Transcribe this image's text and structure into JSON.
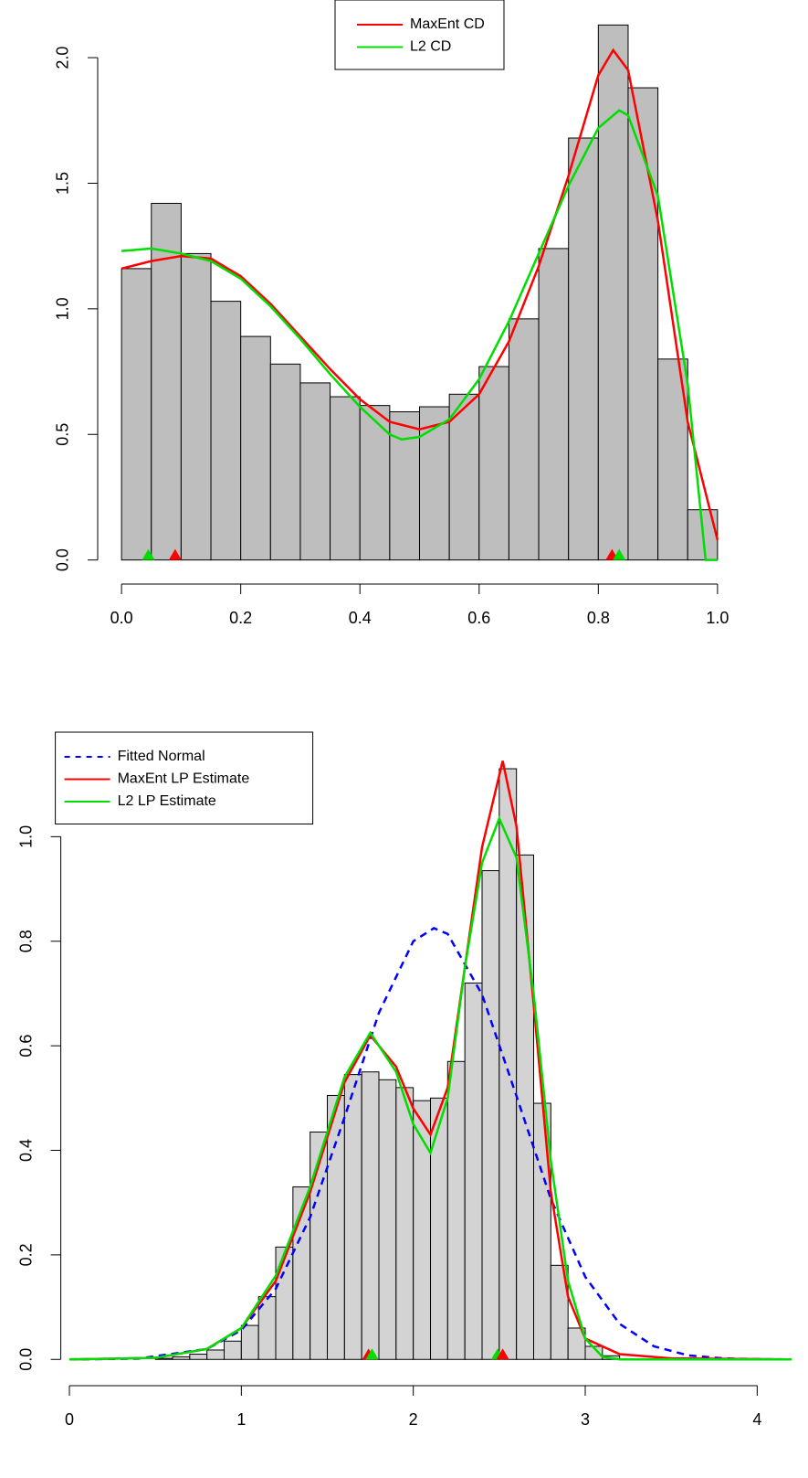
{
  "chart_data": [
    {
      "type": "histogram",
      "bins": [
        0,
        0.05,
        0.1,
        0.15,
        0.2,
        0.25,
        0.3,
        0.35,
        0.4,
        0.45,
        0.5,
        0.55,
        0.6,
        0.65,
        0.7,
        0.75,
        0.8,
        0.85,
        0.9,
        0.95,
        1
      ],
      "values": [
        1.16,
        1.42,
        1.22,
        1.03,
        0.89,
        0.78,
        0.705,
        0.65,
        0.615,
        0.59,
        0.61,
        0.66,
        0.77,
        0.96,
        1.24,
        1.68,
        2.13,
        1.88,
        0.8,
        0.2
      ],
      "color": "#bebebe",
      "series": [
        {
          "name": "MaxEnt CD",
          "color": "#ff0000",
          "dash": false,
          "x": [
            0,
            0.05,
            0.1,
            0.15,
            0.2,
            0.25,
            0.3,
            0.35,
            0.4,
            0.45,
            0.5,
            0.55,
            0.6,
            0.65,
            0.7,
            0.75,
            0.8,
            0.825,
            0.85,
            0.9,
            0.95,
            1
          ],
          "values": [
            1.16,
            1.19,
            1.21,
            1.2,
            1.13,
            1.02,
            0.89,
            0.76,
            0.64,
            0.55,
            0.52,
            0.55,
            0.66,
            0.87,
            1.17,
            1.53,
            1.93,
            2.03,
            1.95,
            1.35,
            0.55,
            0.08
          ]
        },
        {
          "name": "L2 CD",
          "color": "#00dd00",
          "dash": false,
          "x": [
            0,
            0.05,
            0.1,
            0.15,
            0.2,
            0.25,
            0.3,
            0.35,
            0.4,
            0.45,
            0.47,
            0.5,
            0.55,
            0.6,
            0.65,
            0.7,
            0.75,
            0.8,
            0.835,
            0.85,
            0.9,
            0.95,
            0.98,
            1
          ],
          "values": [
            1.23,
            1.24,
            1.22,
            1.19,
            1.12,
            1.01,
            0.88,
            0.74,
            0.61,
            0.5,
            0.48,
            0.49,
            0.56,
            0.72,
            0.95,
            1.22,
            1.49,
            1.72,
            1.79,
            1.77,
            1.45,
            0.7,
            0,
            0
          ]
        }
      ],
      "points": {
        "x": [
          0.045,
          0.09,
          0.823,
          0.835
        ],
        "colors": [
          "#00dd00",
          "#ff0000",
          "#ff0000",
          "#00dd00"
        ]
      },
      "xlim": [
        -0.04,
        1.04
      ],
      "ylim": [
        -0.085,
        2.215
      ],
      "xticks": [
        {
          "value": 0,
          "label": "0.0"
        },
        0.2,
        0.4,
        0.6,
        0.8,
        {
          "value": 1,
          "label": "1.0"
        }
      ],
      "yticks": [
        {
          "value": 0,
          "label": "0.0"
        },
        0.5,
        {
          "value": 1,
          "label": "1.0"
        },
        1.5,
        {
          "value": 2,
          "label": "2.0"
        }
      ],
      "legend": "top"
    },
    {
      "type": "histogram",
      "bins": [
        0.5,
        0.6,
        0.7,
        0.8,
        0.9,
        1.0,
        1.1,
        1.2,
        1.3,
        1.4,
        1.5,
        1.6,
        1.7,
        1.8,
        1.9,
        2.0,
        2.1,
        2.2,
        2.3,
        2.4,
        2.5,
        2.6,
        2.7,
        2.8,
        2.9,
        3.0,
        3.1,
        3.2
      ],
      "values": [
        0.002,
        0.005,
        0.01,
        0.018,
        0.035,
        0.065,
        0.12,
        0.215,
        0.33,
        0.435,
        0.505,
        0.545,
        0.55,
        0.535,
        0.52,
        0.495,
        0.5,
        0.57,
        0.72,
        0.935,
        1.13,
        0.965,
        0.49,
        0.18,
        0.06,
        0.025,
        0.007
      ],
      "color": "#d3d3d3",
      "series": [
        {
          "name": "Fitted Normal",
          "color": "#0000ff",
          "dash": true,
          "x": [
            0,
            0.4,
            0.8,
            1.0,
            1.2,
            1.4,
            1.6,
            1.8,
            2.0,
            2.12,
            2.2,
            2.4,
            2.6,
            2.8,
            3.0,
            3.2,
            3.4,
            3.6,
            3.8,
            4.0,
            4.2
          ],
          "values": [
            0,
            0.0015,
            0.02,
            0.056,
            0.135,
            0.272,
            0.463,
            0.663,
            0.8,
            0.825,
            0.814,
            0.698,
            0.504,
            0.307,
            0.158,
            0.068,
            0.025,
            0.0076,
            0.002,
            0.0004,
            0
          ]
        },
        {
          "name": "MaxEnt LP Estimate",
          "color": "#ff0000",
          "dash": false,
          "x": [
            0,
            0.5,
            0.8,
            1.0,
            1.2,
            1.4,
            1.6,
            1.75,
            1.9,
            2.0,
            2.1,
            2.2,
            2.3,
            2.4,
            2.52,
            2.6,
            2.7,
            2.8,
            2.9,
            3.0,
            3.2,
            3.5,
            4.2
          ],
          "values": [
            0,
            0.003,
            0.02,
            0.06,
            0.15,
            0.32,
            0.53,
            0.62,
            0.56,
            0.48,
            0.43,
            0.52,
            0.75,
            0.98,
            1.145,
            1.02,
            0.68,
            0.32,
            0.12,
            0.04,
            0.01,
            0.002,
            0
          ]
        },
        {
          "name": "L2 LP Estimate",
          "color": "#00dd00",
          "dash": false,
          "x": [
            0,
            0.5,
            0.8,
            1.0,
            1.2,
            1.4,
            1.6,
            1.75,
            1.9,
            2.0,
            2.1,
            2.2,
            2.3,
            2.4,
            2.5,
            2.6,
            2.7,
            2.8,
            2.9,
            3.0,
            3.1,
            3.2,
            4.2
          ],
          "values": [
            0,
            0.003,
            0.02,
            0.06,
            0.16,
            0.33,
            0.54,
            0.625,
            0.55,
            0.45,
            0.395,
            0.5,
            0.75,
            0.95,
            1.035,
            0.96,
            0.7,
            0.38,
            0.15,
            0.04,
            0.005,
            0,
            0
          ]
        }
      ],
      "points": {
        "x": [
          1.74,
          1.76,
          2.49,
          2.52
        ],
        "colors": [
          "#ff0000",
          "#00dd00",
          "#00dd00",
          "#ff0000"
        ]
      },
      "xlim": [
        -0.05,
        4.2
      ],
      "ylim": [
        -0.045,
        1.2
      ],
      "xticks": [
        0,
        1,
        2,
        3,
        4
      ],
      "yticks": [
        {
          "value": 0,
          "label": "0.0"
        },
        0.2,
        0.4,
        0.6,
        0.8,
        {
          "value": 1,
          "label": "1.0"
        }
      ],
      "legend": "topleft"
    }
  ]
}
